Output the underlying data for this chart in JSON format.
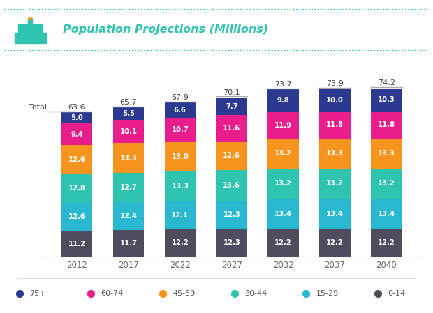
{
  "title": "Population Projections (Millions)",
  "years": [
    "2012",
    "2017",
    "2022",
    "2027",
    "2032",
    "2037",
    "2040"
  ],
  "totals": [
    63.6,
    65.7,
    67.9,
    70.1,
    73.7,
    73.9,
    74.2
  ],
  "segments": {
    "0-14": [
      11.2,
      11.7,
      12.2,
      12.3,
      12.2,
      12.2,
      12.2
    ],
    "15-29": [
      12.6,
      12.4,
      12.1,
      12.3,
      13.4,
      13.4,
      13.4
    ],
    "30-44": [
      12.8,
      12.7,
      13.3,
      13.6,
      13.2,
      13.2,
      13.2
    ],
    "45-59": [
      12.6,
      13.3,
      13.0,
      12.6,
      13.2,
      13.3,
      13.3
    ],
    "60-74": [
      9.4,
      10.1,
      10.7,
      11.6,
      11.9,
      11.8,
      11.8
    ],
    "75+": [
      5.0,
      5.5,
      6.6,
      7.7,
      9.8,
      10.0,
      10.3
    ]
  },
  "colors": {
    "0-14": "#4d4d5e",
    "15-29": "#29b8d0",
    "30-44": "#2ec4b0",
    "45-59": "#f7941d",
    "60-74": "#e91e8c",
    "75+": "#2b3990"
  },
  "segment_order": [
    "0-14",
    "15-29",
    "30-44",
    "45-59",
    "60-74",
    "75+"
  ],
  "legend_order": [
    "75+",
    "60-74",
    "45-59",
    "30-44",
    "15-29",
    "0-14"
  ],
  "background_color": "#ffffff",
  "title_color": "#2ec4b0",
  "dotted_color": "#2ec4b0",
  "bar_width": 0.6
}
